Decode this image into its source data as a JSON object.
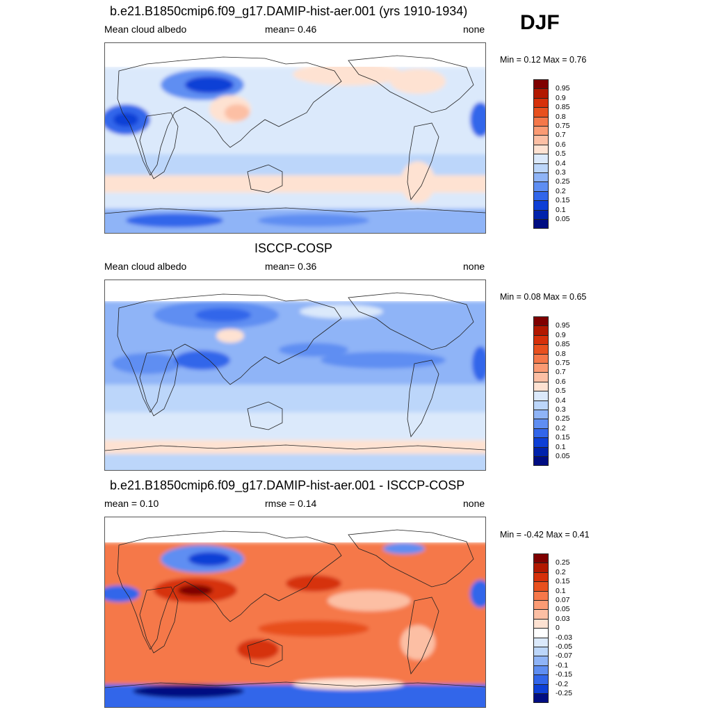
{
  "season": "DJF",
  "panels": [
    {
      "title": "b.e21.B1850cmip6.f09_g17.DAMIP-hist-aer.001 (yrs 1910-1934)",
      "left_label": "Mean cloud albedo",
      "center_label": "mean=   0.46",
      "right_label": "none",
      "minmax": "Min =   0.12 Max =   0.76"
    },
    {
      "title": "ISCCP-COSP",
      "left_label": "Mean cloud albedo",
      "center_label": "mean=   0.36",
      "right_label": "none",
      "minmax": "Min =   0.08 Max =   0.65"
    },
    {
      "title": "b.e21.B1850cmip6.f09_g17.DAMIP-hist-aer.001 - ISCCP-COSP",
      "left_label": "mean =   0.10",
      "center_label": "rmse =   0.14",
      "right_label": "none",
      "minmax": "Min =  -0.42 Max =   0.41"
    }
  ],
  "chart_data": [
    {
      "type": "heatmap",
      "title": "b.e21.B1850cmip6.f09_g17.DAMIP-hist-aer.001 (yrs 1910-1934)",
      "variable": "Mean cloud albedo",
      "mean": 0.46,
      "min": 0.12,
      "max": 0.76,
      "units": "none",
      "colorbar_levels": [
        "0.95",
        "0.9",
        "0.85",
        "0.8",
        "0.75",
        "0.7",
        "0.6",
        "0.5",
        "0.4",
        "0.3",
        "0.25",
        "0.2",
        "0.15",
        "0.1",
        "0.05"
      ],
      "colors": [
        "#7f0000",
        "#b21800",
        "#d6300a",
        "#e8501e",
        "#f5784a",
        "#fb9b74",
        "#fcbfa4",
        "#fee2d2",
        "#dbe9fb",
        "#bcd6fa",
        "#8fb4f7",
        "#5f8ef2",
        "#3266ea",
        "#0d3fd6",
        "#0022ac",
        "#000d82"
      ]
    },
    {
      "type": "heatmap",
      "title": "ISCCP-COSP",
      "variable": "Mean cloud albedo",
      "mean": 0.36,
      "min": 0.08,
      "max": 0.65,
      "units": "none",
      "colorbar_levels": [
        "0.95",
        "0.9",
        "0.85",
        "0.8",
        "0.75",
        "0.7",
        "0.6",
        "0.5",
        "0.4",
        "0.3",
        "0.25",
        "0.2",
        "0.15",
        "0.1",
        "0.05"
      ],
      "colors": [
        "#7f0000",
        "#b21800",
        "#d6300a",
        "#e8501e",
        "#f5784a",
        "#fb9b74",
        "#fcbfa4",
        "#fee2d2",
        "#dbe9fb",
        "#bcd6fa",
        "#8fb4f7",
        "#5f8ef2",
        "#3266ea",
        "#0d3fd6",
        "#0022ac",
        "#000d82"
      ]
    },
    {
      "type": "heatmap",
      "title": "b.e21.B1850cmip6.f09_g17.DAMIP-hist-aer.001 - ISCCP-COSP",
      "mean": 0.1,
      "rmse": 0.14,
      "min": -0.42,
      "max": 0.41,
      "units": "none",
      "colorbar_levels": [
        "0.25",
        "0.2",
        "0.15",
        "0.1",
        "0.07",
        "0.05",
        "0.03",
        "0",
        "-0.03",
        "-0.05",
        "-0.07",
        "-0.1",
        "-0.15",
        "-0.2",
        "-0.25"
      ],
      "colors": [
        "#7f0000",
        "#b21800",
        "#d6300a",
        "#e8501e",
        "#f5784a",
        "#fb9b74",
        "#fcbfa4",
        "#fee2d2",
        "#ffffff",
        "#dbe9fb",
        "#bcd6fa",
        "#8fb4f7",
        "#5f8ef2",
        "#3266ea",
        "#0d3fd6",
        "#000d82"
      ]
    }
  ]
}
